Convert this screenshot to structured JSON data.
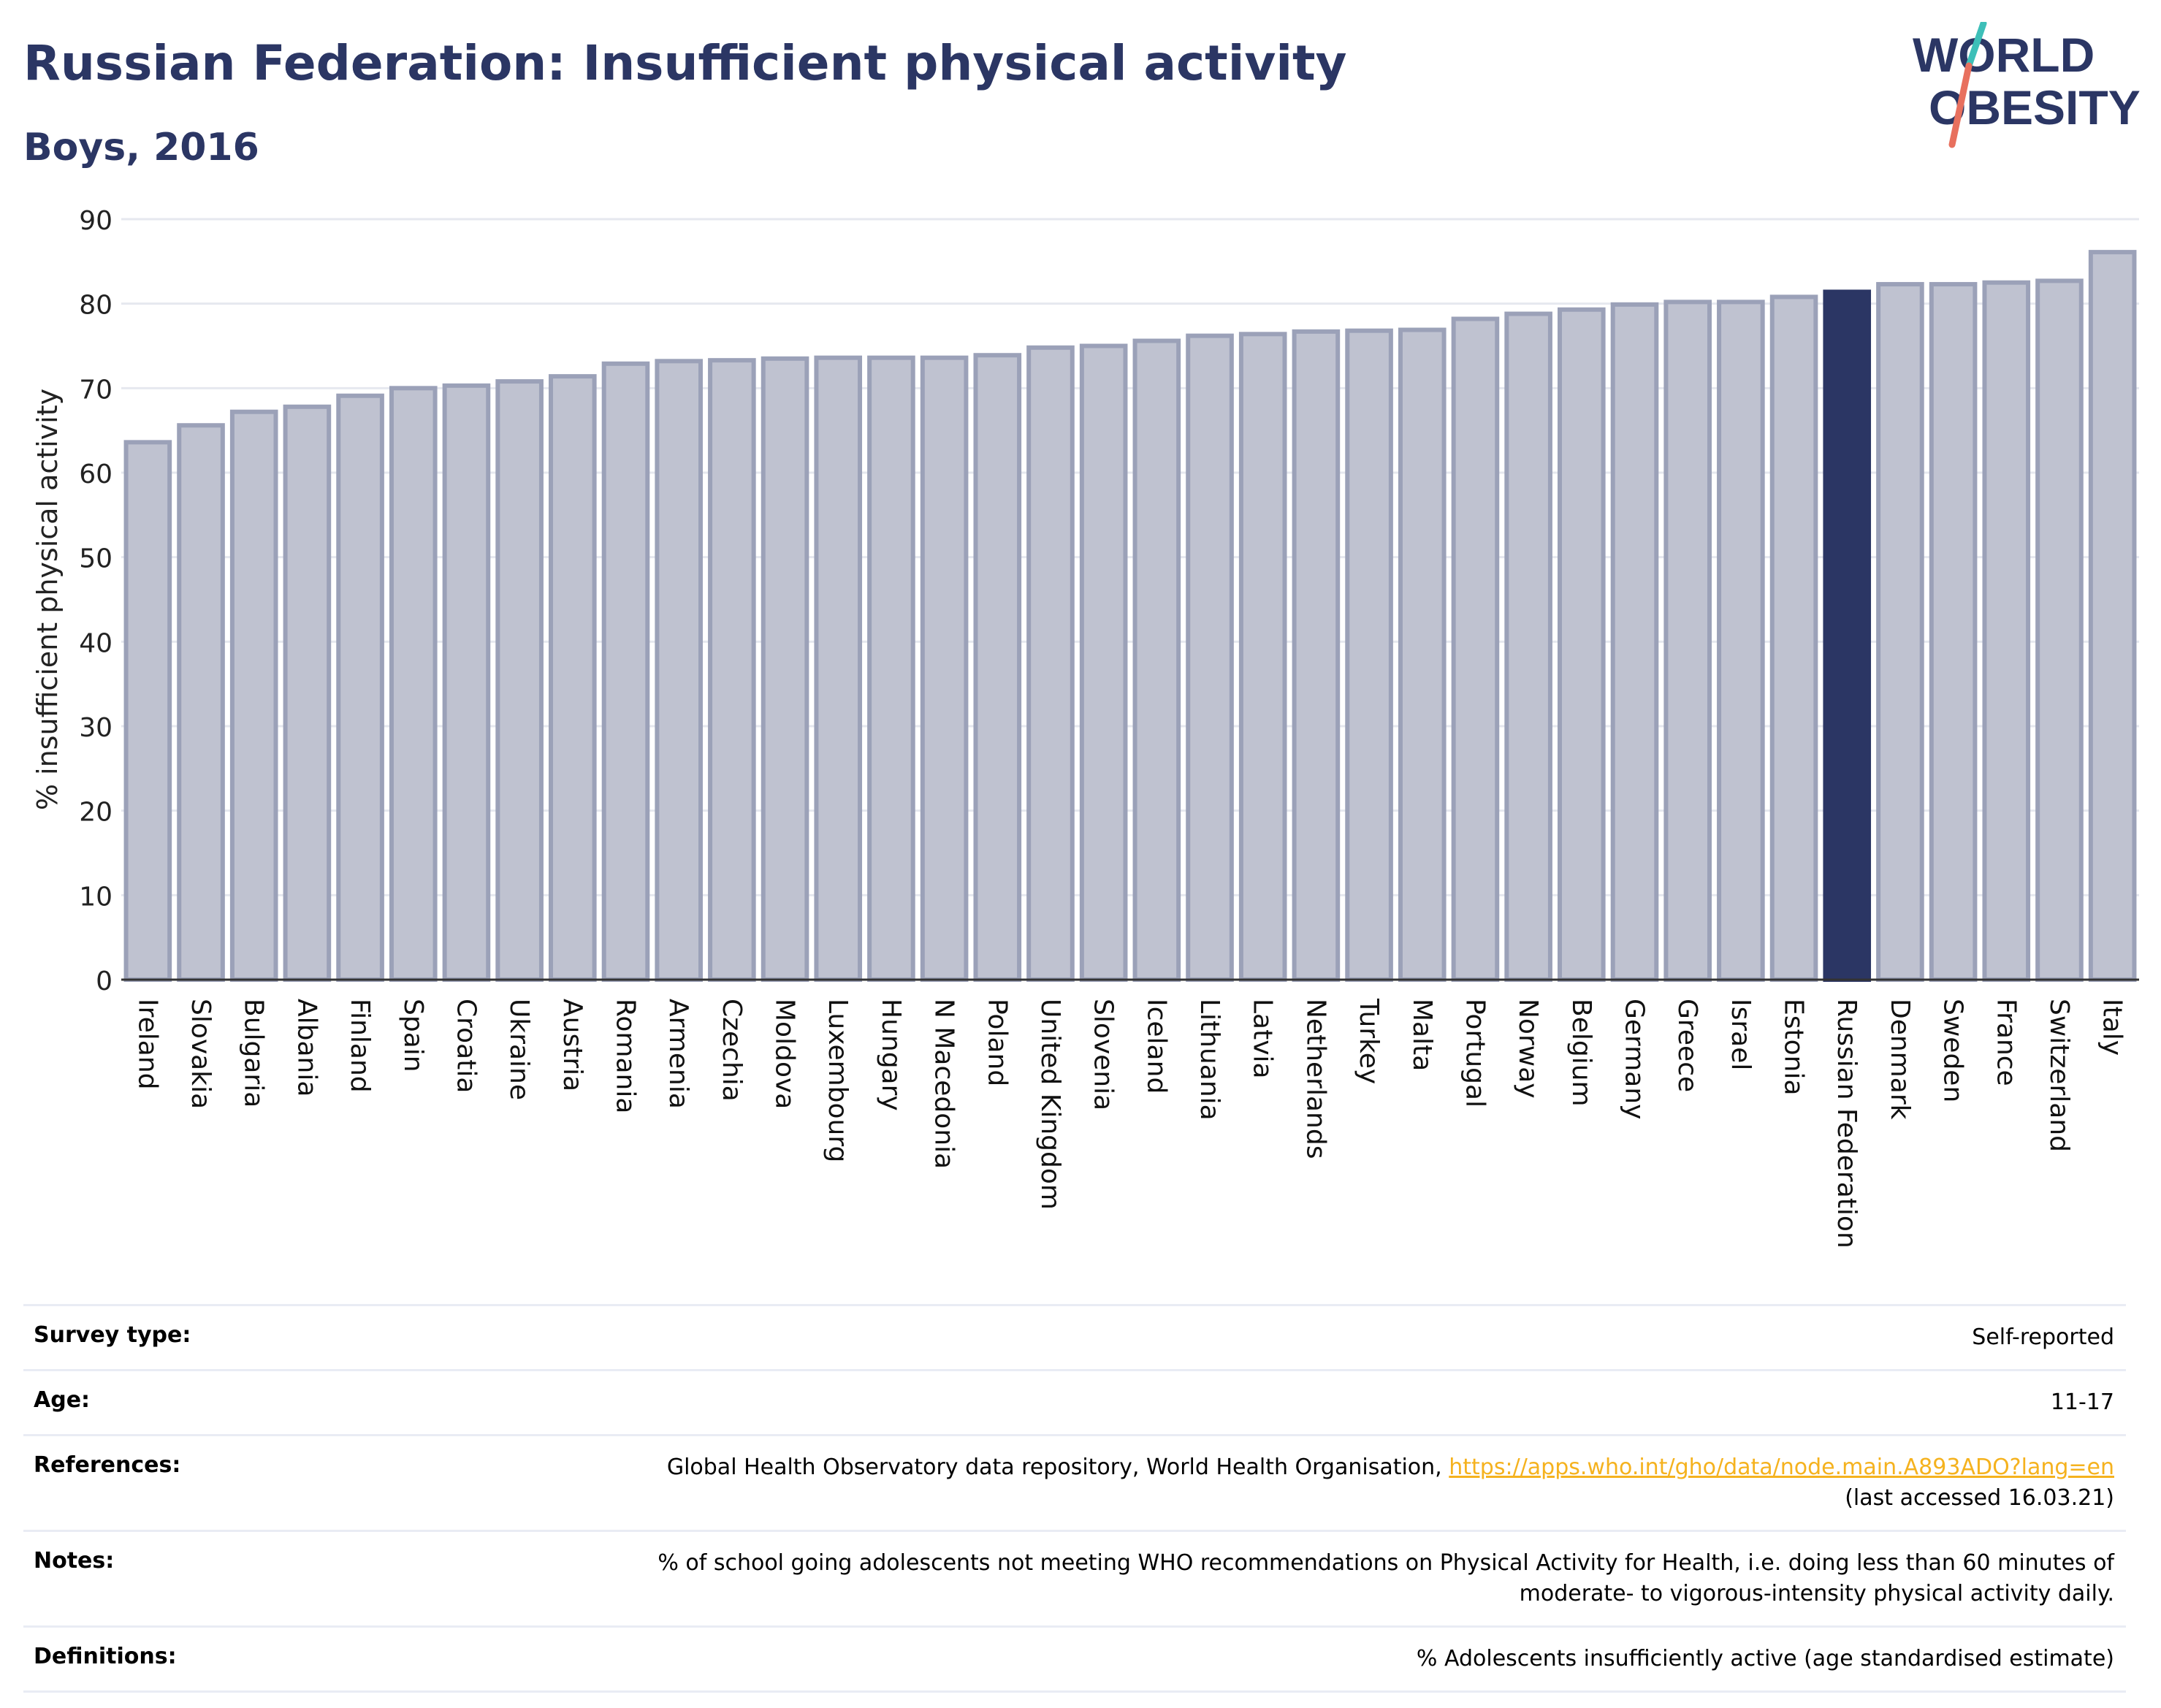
{
  "header": {
    "title": "Russian Federation: Insufficient physical activity",
    "subtitle": "Boys, 2016"
  },
  "logo": {
    "line1": "WORLD",
    "line2": "OBESITY"
  },
  "chart_data": {
    "type": "bar",
    "title": "Russian Federation: Insufficient physical activity",
    "subtitle": "Boys, 2016",
    "xlabel": "",
    "ylabel": "% insufficient physical activity",
    "ylim": [
      0,
      90
    ],
    "yticks": [
      0,
      10,
      20,
      30,
      40,
      50,
      60,
      70,
      80,
      90
    ],
    "grid": true,
    "highlight": "Russian Federation",
    "colors": {
      "bar": "#bfc2d0",
      "bar_edge": "#9ba1b8",
      "highlight": "#2b3664",
      "grid": "#e6e8ef",
      "axis": "#333333"
    },
    "categories": [
      "Ireland",
      "Slovakia",
      "Bulgaria",
      "Albania",
      "Finland",
      "Spain",
      "Croatia",
      "Ukraine",
      "Austria",
      "Romania",
      "Armenia",
      "Czechia",
      "Moldova",
      "Luxembourg",
      "Hungary",
      "N Macedonia",
      "Poland",
      "United Kingdom",
      "Slovenia",
      "Iceland",
      "Lithuania",
      "Latvia",
      "Netherlands",
      "Turkey",
      "Malta",
      "Portugal",
      "Norway",
      "Belgium",
      "Germany",
      "Greece",
      "Israel",
      "Estonia",
      "Russian Federation",
      "Denmark",
      "Sweden",
      "France",
      "Switzerland",
      "Italy"
    ],
    "values": [
      63.6,
      65.6,
      67.2,
      67.8,
      69.1,
      70.0,
      70.3,
      70.8,
      71.4,
      72.9,
      73.2,
      73.3,
      73.5,
      73.6,
      73.6,
      73.6,
      73.9,
      74.8,
      75.0,
      75.6,
      76.2,
      76.4,
      76.7,
      76.8,
      76.9,
      78.2,
      78.8,
      79.3,
      79.9,
      80.2,
      80.2,
      80.8,
      81.4,
      82.3,
      82.3,
      82.5,
      82.7,
      86.1
    ]
  },
  "meta": {
    "survey_type_label": "Survey type:",
    "survey_type_value": "Self-reported",
    "age_label": "Age:",
    "age_value": "11-17",
    "references_label": "References:",
    "references_text": "Global Health Observatory data repository, World Health Organisation,",
    "references_link": "https://apps.who.int/gho/data/node.main.A893ADO?lang=en",
    "references_accessed": "(last accessed 16.03.21)",
    "notes_label": "Notes:",
    "notes_line1": "% of school going adolescents not meeting WHO recommendations on Physical Activity for Health, i.e. doing less than 60 minutes of",
    "notes_line2": "moderate- to vigorous-intensity physical activity daily.",
    "definitions_label": "Definitions:",
    "definitions_value": "% Adolescents insufficiently active (age standardised estimate)"
  }
}
